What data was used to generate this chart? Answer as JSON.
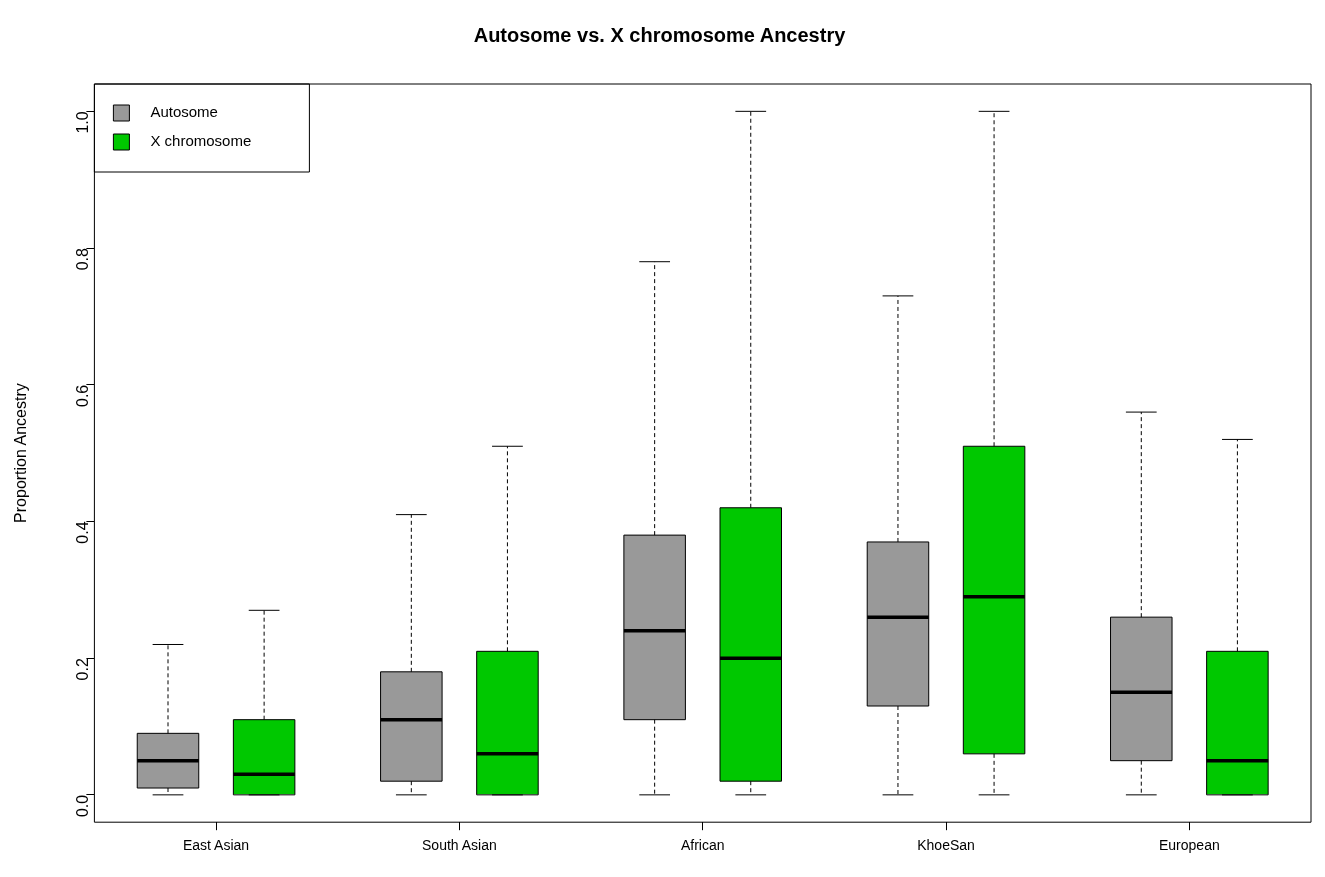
{
  "chart_data": {
    "type": "box",
    "title": "Autosome vs. X chromosome Ancestry",
    "ylabel": "Proportion Ancestry",
    "categories": [
      "East Asian",
      "South Asian",
      "African",
      "KhoeSan",
      "European"
    ],
    "ylim": [
      -0.04,
      1.04
    ],
    "yticks": [
      {
        "value": 0,
        "label": "0.0"
      },
      0.2,
      0.4,
      0.6,
      0.8,
      {
        "value": 1,
        "label": "1.0"
      }
    ],
    "grid": false,
    "legend": "top left",
    "series": [
      {
        "name": "Autosome",
        "color": "#999999",
        "boxes": [
          {
            "low": 0,
            "q1": 0.01,
            "median": 0.05,
            "q3": 0.09,
            "high": 0.22
          },
          {
            "low": 0,
            "q1": 0.02,
            "median": 0.11,
            "q3": 0.18,
            "high": 0.41
          },
          {
            "low": 0,
            "q1": 0.11,
            "median": 0.24,
            "q3": 0.38,
            "high": 0.78
          },
          {
            "low": 0,
            "q1": 0.13,
            "median": 0.26,
            "q3": 0.37,
            "high": 0.73
          },
          {
            "low": 0,
            "q1": 0.05,
            "median": 0.15,
            "q3": 0.26,
            "high": 0.56
          }
        ]
      },
      {
        "name": "X chromosome",
        "color": "#00c800",
        "boxes": [
          {
            "low": 0,
            "q1": 0,
            "median": 0.03,
            "q3": 0.11,
            "high": 0.27
          },
          {
            "low": 0,
            "q1": 0,
            "median": 0.06,
            "q3": 0.21,
            "high": 0.51
          },
          {
            "low": 0,
            "q1": 0.02,
            "median": 0.2,
            "q3": 0.42,
            "high": 1
          },
          {
            "low": 0,
            "q1": 0.06,
            "median": 0.29,
            "q3": 0.51,
            "high": 1
          },
          {
            "low": 0,
            "q1": 0,
            "median": 0.05,
            "q3": 0.21,
            "high": 0.52
          }
        ]
      }
    ]
  }
}
